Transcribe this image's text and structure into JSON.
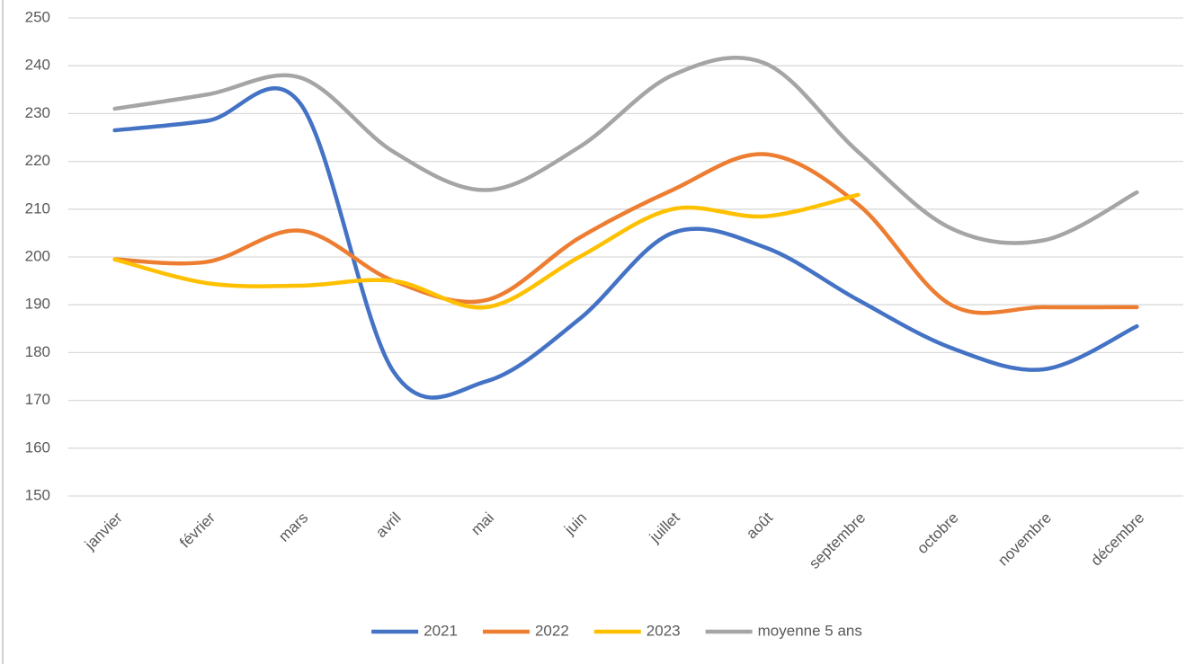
{
  "chart_data": {
    "type": "line",
    "categories": [
      "janvier",
      "février",
      "mars",
      "avril",
      "mai",
      "juin",
      "juillet",
      "août",
      "septembre",
      "octobre",
      "novembre",
      "décembre"
    ],
    "series": [
      {
        "name": "2021",
        "color": "#4472c4",
        "values": [
          226.5,
          228.5,
          232,
          176,
          174,
          187,
          205,
          202,
          191,
          181,
          176.5,
          185.5
        ]
      },
      {
        "name": "2022",
        "color": "#ed7d31",
        "values": [
          199.5,
          199,
          205.5,
          195,
          191,
          204,
          214,
          221.5,
          211,
          190,
          189.5,
          189.5
        ]
      },
      {
        "name": "2023",
        "color": "#ffc000",
        "values": [
          199.5,
          194.5,
          194,
          195,
          189.5,
          200,
          210,
          208.5,
          213,
          null,
          null,
          null
        ]
      },
      {
        "name": "moyenne 5 ans",
        "color": "#a5a5a5",
        "values": [
          231,
          234,
          237.5,
          222,
          214,
          223,
          238,
          240.5,
          222,
          206,
          203.5,
          213.5
        ]
      }
    ],
    "ylim": [
      150,
      250
    ],
    "yticks": [
      150,
      160,
      170,
      180,
      190,
      200,
      210,
      220,
      230,
      240,
      250
    ],
    "grid": true,
    "smooth": true,
    "legend": "bottom"
  }
}
